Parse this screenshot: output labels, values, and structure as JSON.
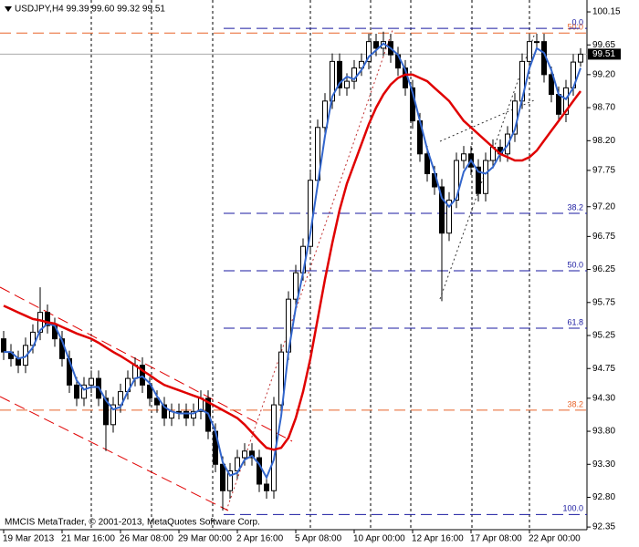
{
  "chart_data": {
    "type": "candlestick",
    "header": "USDJPY,H4  99.39 99.60 99.32 99.51",
    "footer": "MMCIS MetaTrader, © 2001-2013, MetaQuotes Software Corp.",
    "categories": [
      "19 Mar 2013",
      null,
      null,
      null,
      null,
      null,
      null,
      null,
      "21 Mar 16:00",
      null,
      null,
      null,
      null,
      null,
      null,
      null,
      "26 Mar 08:00",
      null,
      null,
      null,
      null,
      null,
      null,
      null,
      "29 Mar 00:00",
      null,
      null,
      null,
      null,
      null,
      null,
      null,
      "2 Apr 16:00",
      null,
      null,
      null,
      null,
      null,
      null,
      null,
      "5 Apr 08:00",
      null,
      null,
      null,
      null,
      null,
      null,
      null,
      "10 Apr 00:00",
      null,
      null,
      null,
      null,
      null,
      null,
      null,
      "12 Apr 16:00",
      null,
      null,
      null,
      null,
      null,
      null,
      null,
      "17 Apr 08:00",
      null,
      null,
      null,
      null,
      null,
      null,
      null,
      "22 Apr 00:00",
      null,
      null,
      null,
      null,
      null,
      null,
      null
    ],
    "open": [
      95.2,
      95.0,
      94.9,
      94.8,
      95.1,
      95.3,
      95.6,
      95.4,
      95.2,
      94.9,
      94.5,
      94.3,
      94.5,
      94.6,
      94.3,
      93.9,
      94.2,
      94.4,
      94.6,
      94.8,
      94.5,
      94.3,
      94.2,
      94.0,
      94.1,
      94.1,
      94.0,
      94.1,
      94.3,
      93.8,
      93.3,
      92.9,
      93.2,
      93.4,
      93.5,
      93.4,
      93.0,
      92.9,
      94.2,
      95.0,
      95.8,
      96.2,
      96.6,
      97.6,
      98.4,
      98.8,
      99.4,
      99.0,
      99.1,
      99.3,
      99.4,
      99.7,
      99.6,
      99.7,
      99.5,
      99.3,
      99.0,
      98.5,
      98.0,
      97.7,
      97.5,
      96.8,
      97.3,
      97.9,
      98.0,
      97.8,
      97.4,
      97.9,
      98.1,
      98.0,
      98.3,
      98.8,
      99.4,
      99.7,
      99.7,
      99.2,
      98.9,
      98.6,
      99.0,
      99.39
    ],
    "high": [
      95.32,
      95.12,
      95.02,
      95.22,
      95.42,
      95.98,
      95.72,
      95.52,
      95.32,
      95.02,
      94.62,
      94.62,
      94.72,
      94.72,
      94.42,
      94.32,
      94.52,
      94.72,
      94.92,
      94.92,
      94.62,
      94.42,
      94.32,
      94.22,
      94.22,
      94.22,
      94.22,
      94.42,
      94.42,
      93.92,
      93.42,
      93.32,
      93.52,
      93.62,
      93.62,
      93.52,
      93.12,
      94.32,
      95.12,
      95.92,
      96.32,
      96.72,
      97.72,
      98.52,
      98.92,
      99.52,
      99.52,
      99.22,
      99.42,
      99.52,
      99.82,
      99.82,
      99.85,
      99.82,
      99.62,
      99.42,
      99.12,
      98.62,
      98.12,
      97.82,
      97.62,
      97.42,
      98.02,
      98.12,
      98.12,
      97.92,
      98.02,
      98.22,
      98.22,
      98.42,
      98.92,
      99.52,
      99.82,
      99.82,
      99.82,
      99.32,
      99.02,
      99.12,
      99.51,
      99.6
    ],
    "low": [
      94.88,
      94.78,
      94.68,
      94.68,
      94.98,
      95.18,
      95.28,
      95.08,
      94.78,
      94.38,
      94.18,
      94.18,
      94.38,
      94.18,
      93.5,
      93.78,
      94.08,
      94.28,
      94.48,
      94.38,
      94.18,
      94.08,
      93.88,
      93.88,
      93.98,
      93.88,
      93.88,
      93.98,
      93.68,
      93.18,
      92.6,
      92.78,
      93.08,
      93.28,
      93.28,
      92.88,
      92.78,
      92.78,
      94.08,
      94.88,
      95.68,
      96.08,
      96.48,
      97.48,
      98.28,
      98.68,
      98.88,
      98.88,
      98.98,
      99.18,
      99.28,
      99.48,
      99.48,
      99.38,
      99.18,
      98.88,
      98.38,
      97.88,
      97.58,
      97.38,
      95.77,
      96.68,
      97.18,
      97.78,
      97.68,
      97.28,
      97.28,
      97.78,
      97.88,
      97.88,
      98.18,
      98.68,
      99.28,
      99.58,
      99.08,
      98.78,
      98.48,
      98.48,
      98.88,
      99.32
    ],
    "close": [
      95.0,
      94.9,
      94.8,
      95.1,
      95.3,
      95.6,
      95.4,
      95.2,
      94.9,
      94.5,
      94.3,
      94.5,
      94.6,
      94.3,
      93.9,
      94.2,
      94.4,
      94.6,
      94.8,
      94.5,
      94.3,
      94.2,
      94.0,
      94.1,
      94.1,
      94.0,
      94.1,
      94.3,
      93.8,
      93.3,
      92.9,
      93.2,
      93.4,
      93.5,
      93.4,
      93.0,
      92.9,
      94.2,
      95.0,
      95.8,
      96.2,
      96.6,
      97.6,
      98.4,
      98.8,
      99.4,
      99.0,
      99.1,
      99.3,
      99.4,
      99.7,
      99.6,
      99.7,
      99.5,
      99.3,
      99.0,
      98.5,
      98.0,
      97.7,
      97.5,
      96.8,
      97.3,
      97.9,
      98.0,
      97.8,
      97.4,
      97.9,
      98.1,
      98.0,
      98.3,
      98.8,
      99.4,
      99.7,
      99.7,
      99.2,
      98.9,
      98.6,
      99.0,
      99.39,
      99.51
    ],
    "candle_color": "#000000",
    "series": [
      {
        "color": "#3366cc",
        "values": [
          95.0,
          95.0,
          94.9,
          94.93,
          95.07,
          95.33,
          95.43,
          95.4,
          95.17,
          94.87,
          94.57,
          94.43,
          94.47,
          94.47,
          94.27,
          94.13,
          94.17,
          94.4,
          94.6,
          94.63,
          94.53,
          94.33,
          94.17,
          94.1,
          94.07,
          94.07,
          94.07,
          94.13,
          94.07,
          93.8,
          93.33,
          93.13,
          93.17,
          93.37,
          93.43,
          93.3,
          93.1,
          93.37,
          94.03,
          95.0,
          95.67,
          96.2,
          96.8,
          97.53,
          98.27,
          98.87,
          99.07,
          99.17,
          99.13,
          99.27,
          99.47,
          99.57,
          99.67,
          99.6,
          99.5,
          99.27,
          98.93,
          98.5,
          98.07,
          97.73,
          97.33,
          97.2,
          97.33,
          97.73,
          97.9,
          97.73,
          97.7,
          97.8,
          98.0,
          98.13,
          98.37,
          98.83,
          99.3,
          99.6,
          99.53,
          99.27,
          98.9,
          98.83,
          99.0,
          99.3
        ]
      },
      {
        "color": "#e00000",
        "values": [
          95.7,
          95.65,
          95.6,
          95.55,
          95.5,
          95.48,
          95.45,
          95.43,
          95.38,
          95.33,
          95.28,
          95.24,
          95.2,
          95.14,
          95.07,
          95.0,
          94.94,
          94.87,
          94.8,
          94.72,
          94.65,
          94.57,
          94.5,
          94.46,
          94.42,
          94.38,
          94.34,
          94.3,
          94.24,
          94.18,
          94.12,
          94.06,
          94.0,
          93.9,
          93.78,
          93.66,
          93.55,
          93.52,
          93.55,
          93.7,
          94.0,
          94.4,
          94.9,
          95.5,
          96.1,
          96.65,
          97.15,
          97.55,
          97.85,
          98.15,
          98.45,
          98.7,
          98.9,
          99.05,
          99.15,
          99.2,
          99.2,
          99.15,
          99.1,
          99.0,
          98.9,
          98.8,
          98.65,
          98.5,
          98.4,
          98.3,
          98.2,
          98.1,
          98.0,
          97.95,
          97.9,
          97.9,
          97.95,
          98.05,
          98.2,
          98.35,
          98.5,
          98.65,
          98.8,
          98.95
        ]
      }
    ],
    "current_price": 99.51,
    "fib_blue": {
      "color": "#1a1aa0",
      "levels": [
        {
          "price": 99.9,
          "label": "0.0"
        },
        {
          "price": 97.1,
          "label": "38.2"
        },
        {
          "price": 96.23,
          "label": "50.0"
        },
        {
          "price": 95.36,
          "label": "61.8"
        },
        {
          "price": 92.54,
          "label": "100.0"
        }
      ]
    },
    "fib_orange": {
      "color": "#e8642a",
      "levels": [
        {
          "price": 99.83,
          "label": "50.0"
        },
        {
          "price": 94.12,
          "label": "38.2"
        }
      ]
    },
    "ylim": [
      92.31,
      100.33
    ],
    "yticks": [
      100.15,
      99.65,
      {
        "value": 99.2,
        "label": "99.20"
      },
      {
        "value": 98.7,
        "label": "98.70"
      },
      {
        "value": 98.2,
        "label": "98.20"
      },
      97.75,
      {
        "value": 97.2,
        "label": "97.20"
      },
      96.75,
      96.25,
      95.75,
      95.25,
      94.75,
      {
        "value": 94.3,
        "label": "94.30"
      },
      {
        "value": 93.8,
        "label": "93.80"
      },
      {
        "value": 93.3,
        "label": "93.30"
      },
      {
        "value": 92.8,
        "label": "92.80"
      },
      92.35
    ]
  }
}
